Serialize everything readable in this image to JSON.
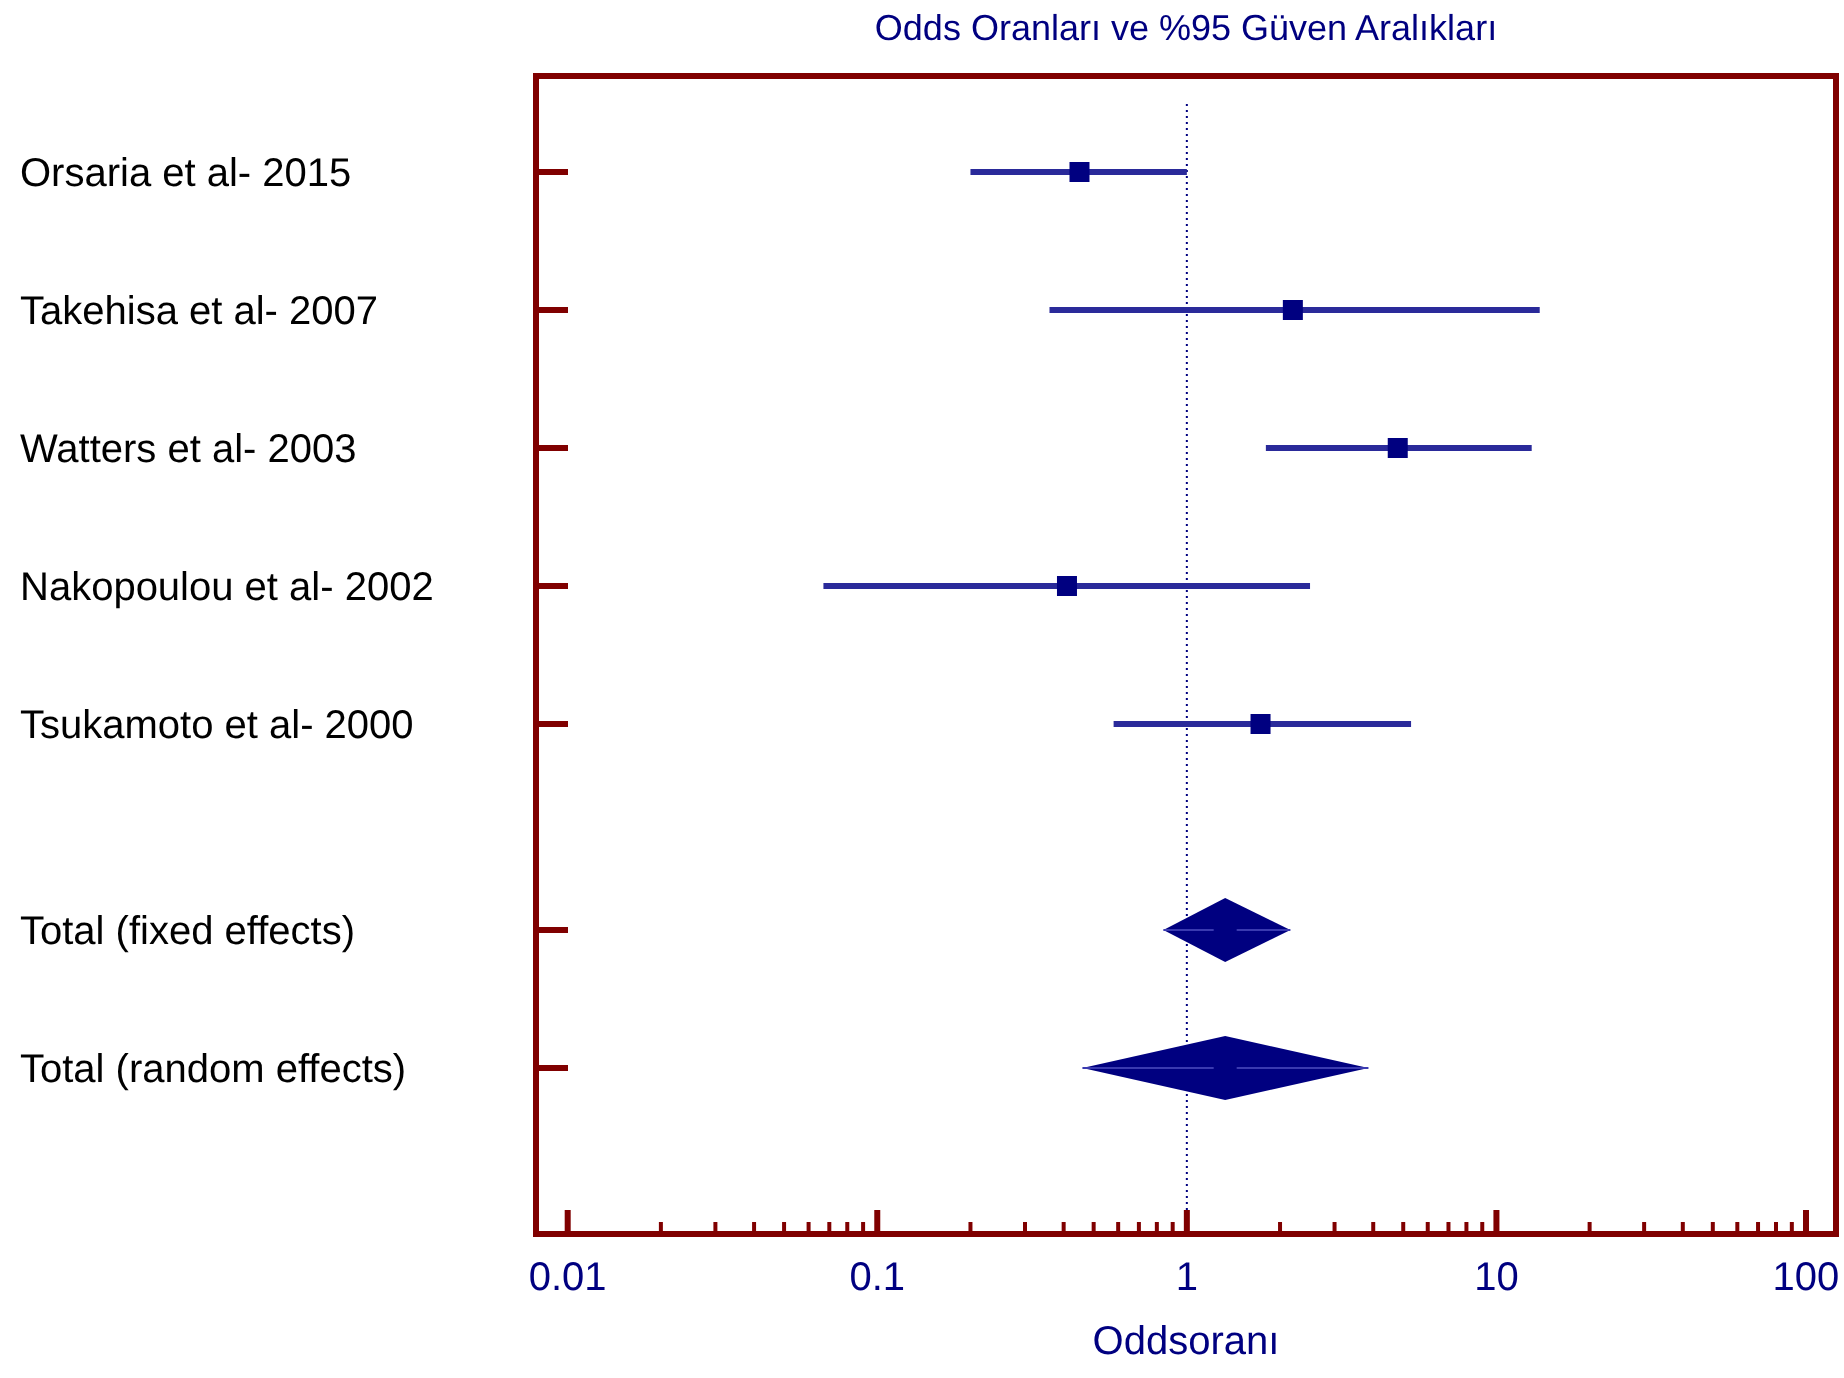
{
  "chart_data": {
    "type": "scatter",
    "orientation": "horizontal",
    "title": "Odds Oranları ve %95 Güven Aralıkları",
    "xlabel": "Oddsoranı",
    "log": "x",
    "categories": [
      "Orsaria et al- 2015",
      "Takehisa et al- 2007",
      "Watters et al- 2003",
      "Nakopoulou et al- 2002",
      "Tsukamoto et al- 2000",
      "Total (fixed effects)",
      "Total (random effects)"
    ],
    "series": [
      {
        "color": "#000080",
        "marker": "square",
        "values": [
          0.45,
          2.2,
          4.8,
          0.41,
          1.73,
          null,
          null
        ],
        "errors": [
          [
            0.2,
            1.0
          ],
          [
            0.36,
            13.8
          ],
          [
            1.8,
            13.0
          ],
          [
            0.067,
            2.5
          ],
          [
            0.58,
            5.3
          ],
          null,
          null
        ]
      },
      {
        "color": "#000080",
        "marker": "diamond",
        "values": [
          null,
          null,
          null,
          null,
          null,
          1.33,
          1.33
        ],
        "errors": [
          null,
          null,
          null,
          null,
          null,
          [
            0.84,
            2.16
          ],
          [
            0.46,
            3.86
          ]
        ]
      }
    ],
    "xlim": [
      0.0079,
      125
    ],
    "xticks": [
      0.01,
      {
        "value": 0.02,
        "label": null
      },
      {
        "value": 0.03,
        "label": null
      },
      {
        "value": 0.04,
        "label": null
      },
      {
        "value": 0.05,
        "label": null
      },
      {
        "value": 0.06,
        "label": null
      },
      {
        "value": 0.07,
        "label": null
      },
      {
        "value": 0.08,
        "label": null
      },
      {
        "value": 0.09,
        "label": null
      },
      0.1,
      {
        "value": 0.2,
        "label": null
      },
      {
        "value": 0.3,
        "label": null
      },
      {
        "value": 0.4,
        "label": null
      },
      {
        "value": 0.5,
        "label": null
      },
      {
        "value": 0.6,
        "label": null
      },
      {
        "value": 0.7,
        "label": null
      },
      {
        "value": 0.8,
        "label": null
      },
      {
        "value": 0.9,
        "label": null
      },
      1,
      {
        "value": 2,
        "label": null
      },
      {
        "value": 3,
        "label": null
      },
      {
        "value": 4,
        "label": null
      },
      {
        "value": 5,
        "label": null
      },
      {
        "value": 6,
        "label": null
      },
      {
        "value": 7,
        "label": null
      },
      {
        "value": 8,
        "label": null
      },
      {
        "value": 9,
        "label": null
      },
      10,
      {
        "value": 20,
        "label": null
      },
      {
        "value": 30,
        "label": null
      },
      {
        "value": 40,
        "label": null
      },
      {
        "value": 50,
        "label": null
      },
      {
        "value": 60,
        "label": null
      },
      {
        "value": 70,
        "label": null
      },
      {
        "value": 80,
        "label": null
      },
      {
        "value": 90,
        "label": null
      },
      100
    ],
    "ref_lines": [
      {
        "axis": "x",
        "value": 1,
        "color": "#000080",
        "line_style": "dotted"
      }
    ],
    "grid": false
  }
}
